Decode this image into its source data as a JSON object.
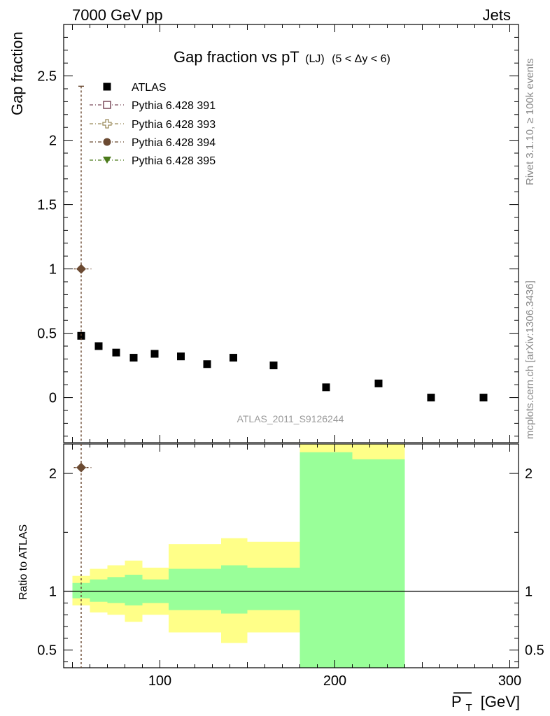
{
  "header": {
    "left": "7000 GeV pp",
    "right": "Jets",
    "title_main": "Gap fraction vs pT",
    "title_sub": "(LJ)",
    "title_cond": "(5 < Δy < 6)",
    "watermark": "ATLAS_2011_S9126244",
    "side_top": "Rivet 3.1.10, ≥ 100k events",
    "side_bottom": "mcplots.cern.ch [arXiv:1306.3436]"
  },
  "chart_data": {
    "type": "scatter",
    "ylabel": "Gap fraction",
    "ratio_ylabel": "Ratio to ATLAS",
    "xlabel_base": "P",
    "xlabel_sub": "T",
    "xlabel_unit": "[GeV]",
    "xlim": [
      45,
      305
    ],
    "ylim": [
      -0.35,
      2.9
    ],
    "ratio_ylim": [
      0.35,
      2.25
    ],
    "x_ticks": [
      100,
      200,
      300
    ],
    "x_tick_labels": [
      "100",
      "200",
      "300"
    ],
    "y_ticks": [
      0,
      0.5,
      1,
      1.5,
      2,
      2.5
    ],
    "y_tick_labels": [
      "0",
      "0.5",
      "1",
      "1.5",
      "2",
      "2.5"
    ],
    "ratio_y_ticks": [
      0.5,
      1,
      2
    ],
    "ratio_y_tick_labels": [
      "0.5",
      "1",
      "2"
    ],
    "legend": {
      "placement": "top-left",
      "entries": [
        {
          "name": "ATLAS",
          "marker": "filled-square",
          "color": "#000000"
        },
        {
          "name": "Pythia 6.428 391",
          "marker": "open-square",
          "color": "#7a4a5a"
        },
        {
          "name": "Pythia 6.428 393",
          "marker": "open-cross",
          "color": "#9a8a5a"
        },
        {
          "name": "Pythia 6.428 394",
          "marker": "filled-circle",
          "color": "#6b4a32"
        },
        {
          "name": "Pythia 6.428 395",
          "marker": "filled-triangle-down",
          "color": "#4a7a1a"
        }
      ]
    },
    "atlas": {
      "x": [
        55,
        65,
        75,
        85,
        97,
        112,
        127,
        142,
        165,
        195,
        225,
        255,
        285
      ],
      "y": [
        0.48,
        0.4,
        0.35,
        0.31,
        0.34,
        0.32,
        0.26,
        0.31,
        0.25,
        0.08,
        0.11,
        0.0,
        0.0
      ]
    },
    "pythia": {
      "x": 55,
      "xerr": [
        50,
        60
      ],
      "y": 1.0,
      "yerr_high": 2.42,
      "ratio": 2.05
    },
    "bands": [
      {
        "x0": 50,
        "x1": 60,
        "yellow": [
          0.88,
          1.13
        ],
        "green": [
          0.94,
          1.07
        ]
      },
      {
        "x0": 60,
        "x1": 70,
        "yellow": [
          0.82,
          1.19
        ],
        "green": [
          0.91,
          1.1
        ]
      },
      {
        "x0": 70,
        "x1": 80,
        "yellow": [
          0.8,
          1.22
        ],
        "green": [
          0.9,
          1.12
        ]
      },
      {
        "x0": 80,
        "x1": 90,
        "yellow": [
          0.74,
          1.26
        ],
        "green": [
          0.88,
          1.14
        ]
      },
      {
        "x0": 90,
        "x1": 105,
        "yellow": [
          0.8,
          1.2
        ],
        "green": [
          0.9,
          1.1
        ]
      },
      {
        "x0": 105,
        "x1": 120,
        "yellow": [
          0.65,
          1.4
        ],
        "green": [
          0.84,
          1.19
        ]
      },
      {
        "x0": 120,
        "x1": 135,
        "yellow": [
          0.65,
          1.4
        ],
        "green": [
          0.84,
          1.19
        ]
      },
      {
        "x0": 135,
        "x1": 150,
        "yellow": [
          0.56,
          1.45
        ],
        "green": [
          0.81,
          1.22
        ]
      },
      {
        "x0": 150,
        "x1": 180,
        "yellow": [
          0.65,
          1.42
        ],
        "green": [
          0.84,
          1.2
        ]
      },
      {
        "x0": 180,
        "x1": 210,
        "yellow": [
          0.35,
          2.3
        ],
        "green": [
          0.35,
          2.18
        ]
      },
      {
        "x0": 210,
        "x1": 240,
        "yellow": [
          0.35,
          2.3
        ],
        "green": [
          0.35,
          2.12
        ]
      }
    ]
  }
}
